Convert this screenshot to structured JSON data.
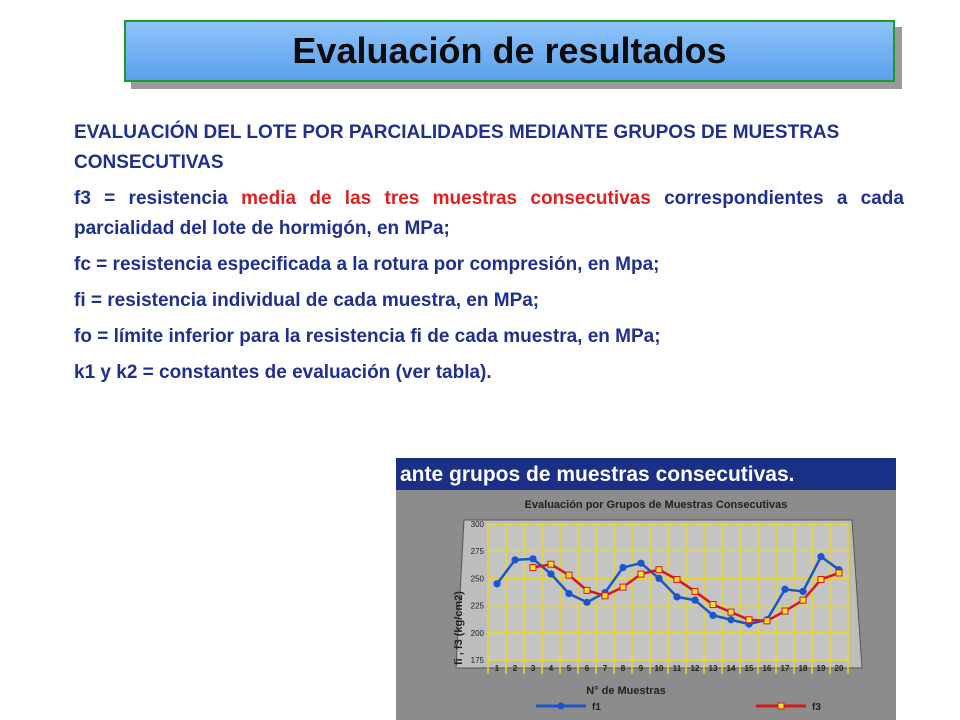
{
  "title": "Evaluación de resultados",
  "heading": "EVALUACIÓN DEL LOTE POR PARCIALIDADES MEDIANTE GRUPOS DE MUESTRAS CONSECUTIVAS",
  "definitions": {
    "f3_start": "f3 = resistencia ",
    "f3_highlight": "media de las tres muestras consecutivas",
    "f3_end": " correspondientes a cada parcialidad del lote de hormigón, en MPa;",
    "fc": "fc = resistencia especificada a la rotura por compresión, en Mpa;",
    "fi": "fi = resistencia individual de cada muestra, en MPa;",
    "fo": "fo = límite inferior para la resistencia fi de cada muestra, en MPa;",
    "k": "k1 y k2 = constantes de evaluación (ver tabla)."
  },
  "figure": {
    "banner": "ante grupos de muestras consecutivas.",
    "chart_data": {
      "type": "line",
      "title": "Evaluación por Grupos de Muestras Consecutivas",
      "xlabel": "N° de Muestras",
      "ylabel": "fi , f3 (kg/cm2)",
      "x": [
        1,
        2,
        3,
        4,
        5,
        6,
        7,
        8,
        9,
        10,
        11,
        12,
        13,
        14,
        15,
        16,
        17,
        18,
        19,
        20
      ],
      "ylim": [
        175,
        300
      ],
      "yticks": [
        175,
        200,
        225,
        250,
        275,
        300
      ],
      "series": [
        {
          "name": "f1",
          "color": "#1a56c8",
          "values": [
            245,
            267,
            268,
            254,
            236,
            228,
            237,
            260,
            264,
            250,
            233,
            230,
            216,
            212,
            208,
            212,
            240,
            238,
            270,
            258
          ]
        },
        {
          "name": "f3",
          "color": "#d81818",
          "values": [
            null,
            null,
            260,
            263,
            253,
            239,
            234,
            242,
            254,
            258,
            249,
            238,
            226,
            219,
            212,
            211,
            220,
            230,
            249,
            255
          ]
        }
      ]
    }
  }
}
